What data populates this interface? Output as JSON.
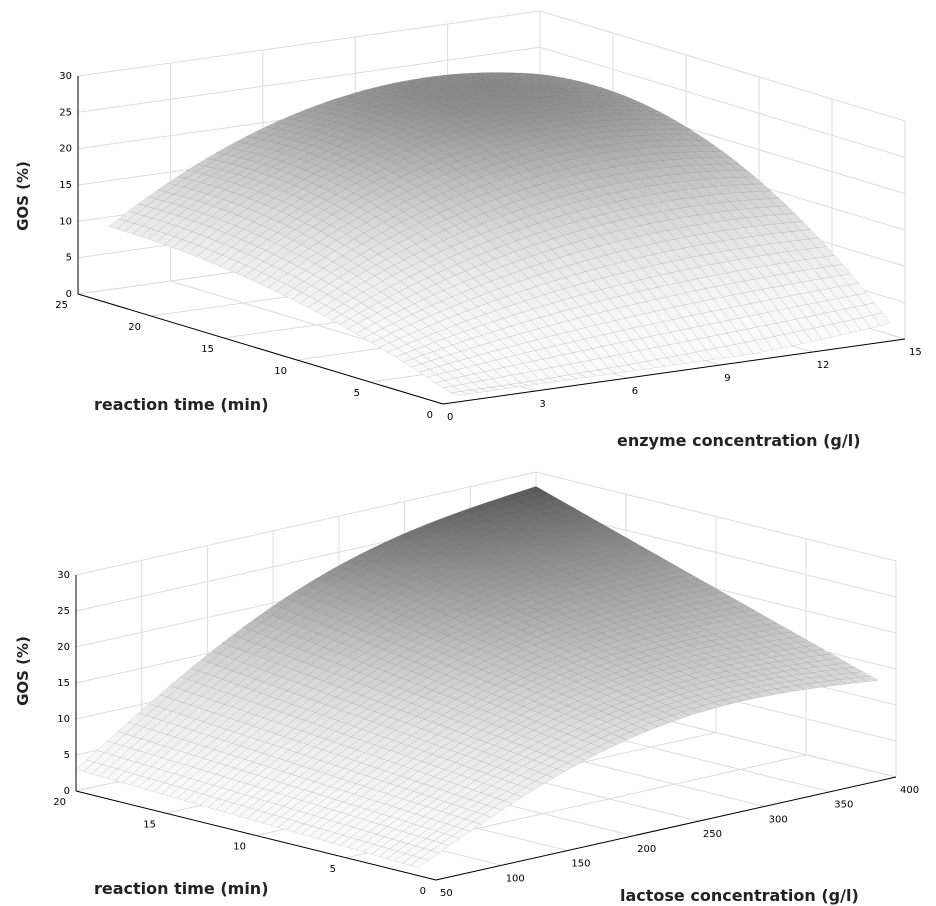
{
  "chart_data": [
    {
      "type": "surface",
      "xlabel": "enzyme  concentration (g/l)",
      "ylabel": "reaction time (min)",
      "zlabel": "GOS (%)",
      "xlim": [
        0,
        15
      ],
      "ylim": [
        0,
        25
      ],
      "zlim": [
        0,
        30
      ],
      "x_ticks": [
        "0",
        "3",
        "6",
        "9",
        "12",
        "15"
      ],
      "y_ticks": [
        "0",
        "5",
        "10",
        "15",
        "20",
        "25"
      ],
      "z_ticks": [
        "0",
        "5",
        "10",
        "15",
        "20",
        "25",
        "30"
      ],
      "x_domain": [
        1,
        15
      ],
      "y_domain": [
        1,
        25
      ],
      "surface_z": {
        "corner_x_min_y_max": 9,
        "corner_x_min_y_min": 0,
        "corner_x_max_y_max": 13,
        "corner_x_max_y_min": 12,
        "max": 30,
        "max_at": [
          11,
          21
        ]
      },
      "grid": true,
      "colormap": "gray"
    },
    {
      "type": "surface",
      "xlabel": "lactose concentration (g/l)",
      "ylabel": "reaction time (min)",
      "zlabel": "GOS (%)",
      "xlim": [
        50,
        400
      ],
      "ylim": [
        0,
        20
      ],
      "zlim": [
        0,
        30
      ],
      "x_ticks": [
        "50",
        "100",
        "150",
        "200",
        "250",
        "300",
        "350",
        "400"
      ],
      "y_ticks": [
        "0",
        "5",
        "10",
        "15",
        "20"
      ],
      "z_ticks": [
        "0",
        "5",
        "10",
        "15",
        "20",
        "25",
        "30"
      ],
      "x_domain": [
        50,
        400
      ],
      "y_domain": [
        1,
        20
      ],
      "surface_z": {
        "corner_x_min_y_max": 3,
        "corner_x_min_y_min": 1,
        "corner_x_max_y_max": 30,
        "corner_x_max_y_min": 12,
        "max": 30,
        "max_at": [
          400,
          20
        ]
      },
      "grid": true,
      "colormap": "gray"
    }
  ]
}
